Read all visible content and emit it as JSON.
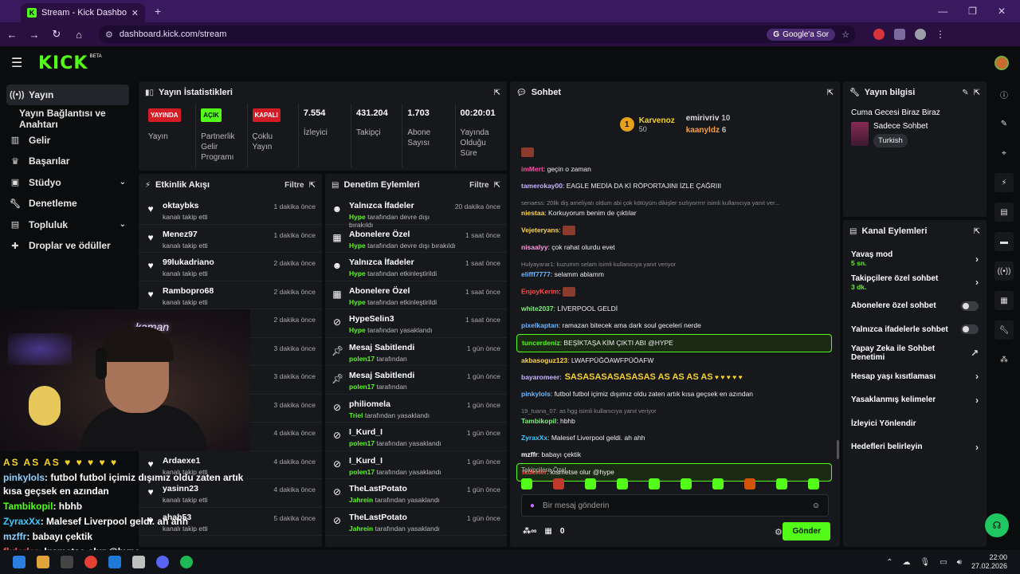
{
  "browser": {
    "tab_title": "Stream - Kick Dashboard",
    "url": "dashboard.kick.com/stream",
    "google_btn": "Google'a Sor"
  },
  "app": {
    "logo": "KICK",
    "beta": "BETA"
  },
  "sidebar": {
    "items": [
      {
        "label": "Yayın"
      },
      {
        "label": "Yayın Bağlantısı ve Anahtarı"
      },
      {
        "label": "Gelir"
      },
      {
        "label": "Başarılar"
      },
      {
        "label": "Stüdyo"
      },
      {
        "label": "Denetleme"
      },
      {
        "label": "Topluluk"
      },
      {
        "label": "Droplar ve ödüller"
      }
    ]
  },
  "stats": {
    "title": "Yayın İstatistikleri",
    "cols": [
      {
        "badge": "YAYINDA",
        "label": "Yayın"
      },
      {
        "badge": "AÇIK",
        "label": "Partnerlik Gelir Programı"
      },
      {
        "badge": "KAPALI",
        "label": "Çoklu Yayın"
      },
      {
        "value": "7.554",
        "label": "İzleyici"
      },
      {
        "value": "431.204",
        "label": "Takipçi"
      },
      {
        "value": "1.703",
        "label": "Abone Sayısı"
      },
      {
        "value": "00:20:01",
        "label": "Yayında Olduğu Süre"
      }
    ]
  },
  "activity": {
    "title": "Etkinlik Akışı",
    "filter": "Filtre",
    "items": [
      {
        "name": "oktaybks",
        "sub": "kanalı takip etti",
        "time": "1 dakika önce"
      },
      {
        "name": "Menez97",
        "sub": "kanalı takip etti",
        "time": "1 dakika önce"
      },
      {
        "name": "99lukadriano",
        "sub": "kanalı takip etti",
        "time": "2 dakika önce"
      },
      {
        "name": "Rambopro68",
        "sub": "kanalı takip etti",
        "time": "2 dakika önce"
      },
      {
        "name": "",
        "sub": "",
        "time": "2 dakika önce"
      },
      {
        "name": "",
        "sub": "",
        "time": "3 dakika önce"
      },
      {
        "name": "ne",
        "sub": "",
        "time": "3 dakika önce"
      },
      {
        "name": "",
        "sub": "",
        "time": "3 dakika önce"
      },
      {
        "name": "",
        "sub": "kanalı takip etti",
        "time": "4 dakika önce"
      },
      {
        "name": "Ardaexe1",
        "sub": "kanalı takip etti",
        "time": "4 dakika önce"
      },
      {
        "name": "yasinn23",
        "sub": "kanalı takip etti",
        "time": "4 dakika önce"
      },
      {
        "name": "ahab53",
        "sub": "kanalı takip etti",
        "time": "5 dakika önce"
      }
    ]
  },
  "moderation": {
    "title": "Denetim Eylemleri",
    "filter": "Filtre",
    "items": [
      {
        "name": "Yalnızca İfadeler",
        "by": "Hype",
        "sub": "tarafından devre dışı bırakıldı",
        "time": "20 dakika önce",
        "icon": "smile-icon"
      },
      {
        "name": "Abonelere Özel",
        "by": "Hype",
        "sub": "tarafından devre dışı bırakıldı",
        "time": "1 saat önce",
        "icon": "gift-icon"
      },
      {
        "name": "Yalnızca İfadeler",
        "by": "Hype",
        "sub": "tarafından etkinleştirildi",
        "time": "1 saat önce",
        "icon": "smile-icon"
      },
      {
        "name": "Abonelere Özel",
        "by": "Hype",
        "sub": "tarafından etkinleştirildi",
        "time": "1 saat önce",
        "icon": "gift-icon"
      },
      {
        "name": "HypeSelin3",
        "by": "Hype",
        "sub": "tarafından yasaklandı",
        "time": "1 saat önce",
        "icon": "ban-icon"
      },
      {
        "name": "Mesaj Sabitlendi",
        "by": "polen17",
        "sub": "tarafından",
        "time": "1 gün önce",
        "icon": "pin-icon"
      },
      {
        "name": "Mesaj Sabitlendi",
        "by": "polen17",
        "sub": "tarafından",
        "time": "1 gün önce",
        "icon": "pin-icon"
      },
      {
        "name": "philiomela",
        "by": "Triel",
        "sub": "tarafından yasaklandı",
        "time": "1 gün önce",
        "icon": "ban-icon"
      },
      {
        "name": "I_Kurd_I",
        "by": "polen17",
        "sub": "tarafından yasaklandı",
        "time": "1 gün önce",
        "icon": "ban-icon"
      },
      {
        "name": "I_Kurd_I",
        "by": "polen17",
        "sub": "tarafından yasaklandı",
        "time": "1 gün önce",
        "icon": "ban-icon"
      },
      {
        "name": "TheLastPotato",
        "by": "Jahrein",
        "sub": "tarafından yasaklandı",
        "time": "1 gün önce",
        "icon": "ban-icon"
      },
      {
        "name": "TheLastPotato",
        "by": "Jahrein",
        "sub": "tarafından yasaklandı",
        "time": "1 gün önce",
        "icon": "ban-icon"
      }
    ]
  },
  "chat": {
    "title": "Sohbet",
    "top": [
      {
        "rank": "1",
        "name": "Karvenoz",
        "count": "50"
      },
      {
        "name": "emirivriv",
        "count": "10"
      },
      {
        "name": "kaanyldz",
        "count": "6"
      }
    ],
    "messages": [
      {
        "user": "",
        "color": "#ff6b6b",
        "text": "",
        "emote": true
      },
      {
        "user": "imMert",
        "color": "#ff4da6",
        "text": ": geçin o zaman"
      },
      {
        "user": "tamerokay00",
        "color": "#c7b3ff",
        "text": ": EAGLE MEDİA DA Kİ RÖPORTAJINI İZLE ÇAĞRIII"
      },
      {
        "reply": "senaess: 20lik diş ameliyatı oldum abi çok kötüyüm dikişler sızlıyorrrrr isimli kullanıcıya yanıt ver...",
        "user": "niestaa",
        "color": "#ffd54a",
        "text": ": Korkuyorum benim de çıktılar"
      },
      {
        "user": "Vejeteryans",
        "color": "#ffd54a",
        "text": ":",
        "emote": true
      },
      {
        "user": "nisaalyy",
        "color": "#ff9de0",
        "text": ": çok rahat olurdu evet"
      },
      {
        "reply": "Hulyayarar1: kuzumm selam isimli kullanıcıya yanıt veriyor",
        "user": "elifff7777",
        "color": "#6ab7ff",
        "text": ": selamm ablamm"
      },
      {
        "user": "EnjoyKerim",
        "color": "#ff4d4d",
        "text": ":",
        "emote": true
      },
      {
        "user": "white2037",
        "color": "#7cf27c",
        "text": ": LİVERPOOL GELDİ"
      },
      {
        "user": "pixelkaptan",
        "color": "#6ab7ff",
        "text": ": ramazan bitecek ama dark soul geceleri nerde"
      },
      {
        "user": "tuncerdeniz",
        "color": "#53fc18",
        "text": ": BEŞİKTAŞA KİM ÇIKTI ABI @HYPE",
        "hl": true
      },
      {
        "user": "akbasoguz123",
        "color": "#ffd54a",
        "text": ": LWAFPÜĞÖAWFPÜÖAFW"
      },
      {
        "user": "bayaromeer",
        "color": "#c7b3ff",
        "text": ":",
        "sas": "SASASASASASASAS AS AS AS AS"
      },
      {
        "user": "pinkylols",
        "color": "#6ab7ff",
        "text": ": futbol futbol içimiz dışımız oldu zaten artık kısa geçsek en azından"
      },
      {
        "reply": "19_tuana_07: as hgg isimli kullanıcıya yanıt veriyor",
        "user": "Tambikopil",
        "color": "#7cf27c",
        "text": ": hbhb"
      },
      {
        "user": "ZyraxXx",
        "color": "#3cc8ff",
        "text": ": Malesef Liverpool geldi. ah ahh"
      },
      {
        "user": "mzffr",
        "color": "#ffffff",
        "text": ": babayı çektik"
      },
      {
        "user": "fkderler",
        "color": "#ff4d4d",
        "text": ": kısmetse olur @hype",
        "hl": true
      }
    ],
    "followers_only": "Takipçilere Özel",
    "input_placeholder": "Bir mesaj gönderin",
    "send": "Gönder",
    "points": "0"
  },
  "stream_info": {
    "title": "Yayın bilgisi",
    "stream_title": "Cuma Gecesi Biraz Biraz",
    "category": "Sadece Sohbet",
    "tag": "Turkish"
  },
  "channel_actions": {
    "title": "Kanal Eylemleri",
    "items": [
      {
        "label": "Yavaş mod",
        "sub": "5 sn.",
        "ctl": "chevron"
      },
      {
        "label": "Takipçilere özel sohbet",
        "sub": "3 dk.",
        "ctl": "chevron"
      },
      {
        "label": "Abonelere özel sohbet",
        "sub": "",
        "ctl": "toggle"
      },
      {
        "label": "Yalnızca ifadelerle sohbet",
        "sub": "",
        "ctl": "toggle"
      },
      {
        "label": "Yapay Zeka ile Sohbet Denetimi",
        "sub": "",
        "ctl": "external"
      },
      {
        "label": "Hesap yaşı kısıtlaması",
        "sub": "",
        "ctl": "chevron"
      },
      {
        "label": "Yasaklanmış kelimeler",
        "sub": "",
        "ctl": "chevron"
      },
      {
        "label": "İzleyici Yönlendir",
        "sub": "",
        "ctl": "none"
      },
      {
        "label": "Hedefleri belirleyin",
        "sub": "",
        "ctl": "chevron"
      }
    ]
  },
  "overlay_chat": [
    {
      "name": "",
      "text": "AS AS AS",
      "hearts": true
    },
    {
      "name": "pinkylols",
      "text": ": futbol futbol içimiz dışımız oldu zaten artık kısa geçsek en azından",
      "cls": ""
    },
    {
      "name": "Tambikopil",
      "text": ": hbhb",
      "cls": "g"
    },
    {
      "name": "ZyraxXx",
      "text": ": Malesef Liverpool geldi. ah ahh",
      "cls": "b"
    },
    {
      "name": "mzffr",
      "text": ": babayı çektik",
      "cls": ""
    },
    {
      "name": "fkderler",
      "text": ": kısmetse olur @hype",
      "cls": "r"
    }
  ],
  "cam_overlay_text": "kaman",
  "taskbar": {
    "time": "22:00",
    "date": "27.02.2026"
  }
}
